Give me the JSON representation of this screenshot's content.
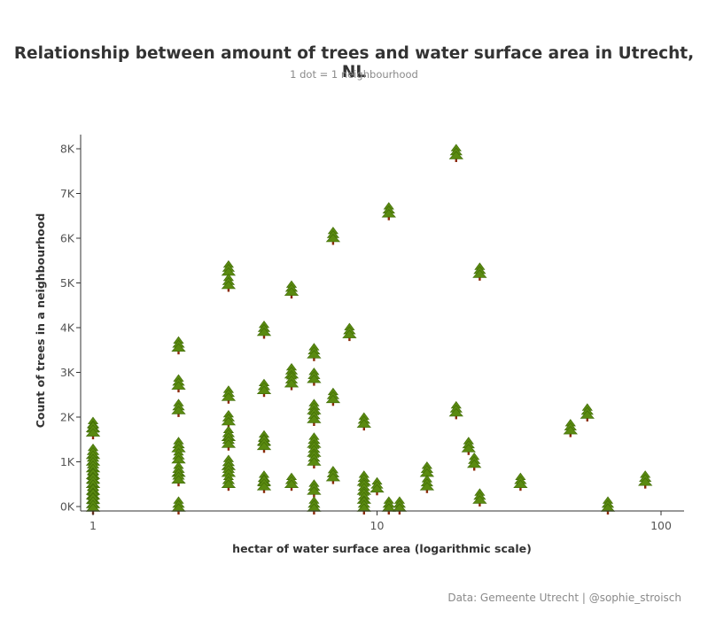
{
  "chart_data": {
    "type": "scatter",
    "title": "Relationship between amount of trees and water surface area in Utrecht, NL",
    "subtitle": "1 dot = 1 neighbourhood",
    "xlabel": "hectar of water surface area (logarithmic scale)",
    "ylabel": "Count of trees in a neighbourhood",
    "x_scale": "log",
    "xlim": [
      0.95,
      130
    ],
    "ylim": [
      0,
      8300
    ],
    "x_ticks": [
      1,
      10,
      100
    ],
    "x_tick_labels": [
      "1",
      "10",
      "100"
    ],
    "y_ticks": [
      0,
      1000,
      2000,
      3000,
      4000,
      5000,
      6000,
      7000,
      8000
    ],
    "y_tick_labels": [
      "0K",
      "1K",
      "2K",
      "3K",
      "4K",
      "5K",
      "6K",
      "7K",
      "8K"
    ],
    "grid": false,
    "legend": "none",
    "marker": "tree",
    "colors": {
      "tree": "#5a8a10",
      "trunk": "#8b2a0a",
      "axis": "#333333"
    },
    "points": [
      {
        "x": 1,
        "y": 1800
      },
      {
        "x": 1,
        "y": 1700
      },
      {
        "x": 1,
        "y": 1200
      },
      {
        "x": 1,
        "y": 1050
      },
      {
        "x": 1,
        "y": 900
      },
      {
        "x": 1,
        "y": 750
      },
      {
        "x": 1,
        "y": 650
      },
      {
        "x": 1,
        "y": 550
      },
      {
        "x": 1,
        "y": 400
      },
      {
        "x": 1,
        "y": 300
      },
      {
        "x": 1,
        "y": 200
      },
      {
        "x": 1,
        "y": 100
      },
      {
        "x": 1,
        "y": 20
      },
      {
        "x": 2,
        "y": 3600
      },
      {
        "x": 2,
        "y": 2750
      },
      {
        "x": 2,
        "y": 2200
      },
      {
        "x": 2,
        "y": 1350
      },
      {
        "x": 2,
        "y": 1100
      },
      {
        "x": 2,
        "y": 800
      },
      {
        "x": 2,
        "y": 650
      },
      {
        "x": 2,
        "y": 20
      },
      {
        "x": 3,
        "y": 5300
      },
      {
        "x": 3,
        "y": 5000
      },
      {
        "x": 3,
        "y": 2500
      },
      {
        "x": 3,
        "y": 1950
      },
      {
        "x": 3,
        "y": 1600
      },
      {
        "x": 3,
        "y": 1450
      },
      {
        "x": 3,
        "y": 950
      },
      {
        "x": 3,
        "y": 800
      },
      {
        "x": 3,
        "y": 550
      },
      {
        "x": 4,
        "y": 3950
      },
      {
        "x": 4,
        "y": 2650
      },
      {
        "x": 4,
        "y": 1500
      },
      {
        "x": 4,
        "y": 1400
      },
      {
        "x": 4,
        "y": 600
      },
      {
        "x": 4,
        "y": 500
      },
      {
        "x": 5,
        "y": 4850
      },
      {
        "x": 5,
        "y": 3000
      },
      {
        "x": 5,
        "y": 2800
      },
      {
        "x": 5,
        "y": 550
      },
      {
        "x": 6,
        "y": 3450
      },
      {
        "x": 6,
        "y": 2900
      },
      {
        "x": 6,
        "y": 2200
      },
      {
        "x": 6,
        "y": 2000
      },
      {
        "x": 6,
        "y": 1450
      },
      {
        "x": 6,
        "y": 1250
      },
      {
        "x": 6,
        "y": 1050
      },
      {
        "x": 6,
        "y": 400
      },
      {
        "x": 6,
        "y": 20
      },
      {
        "x": 7,
        "y": 6050
      },
      {
        "x": 7,
        "y": 2450
      },
      {
        "x": 7,
        "y": 700
      },
      {
        "x": 8,
        "y": 3900
      },
      {
        "x": 9,
        "y": 1900
      },
      {
        "x": 9,
        "y": 600
      },
      {
        "x": 9,
        "y": 400
      },
      {
        "x": 9,
        "y": 200
      },
      {
        "x": 9,
        "y": 20
      },
      {
        "x": 10,
        "y": 450
      },
      {
        "x": 11,
        "y": 6600
      },
      {
        "x": 11,
        "y": 20
      },
      {
        "x": 12,
        "y": 20
      },
      {
        "x": 15,
        "y": 800
      },
      {
        "x": 15,
        "y": 500
      },
      {
        "x": 19,
        "y": 7900
      },
      {
        "x": 19,
        "y": 2150
      },
      {
        "x": 21,
        "y": 1350
      },
      {
        "x": 22,
        "y": 1000
      },
      {
        "x": 23,
        "y": 5250
      },
      {
        "x": 23,
        "y": 200
      },
      {
        "x": 32,
        "y": 550
      },
      {
        "x": 48,
        "y": 1750
      },
      {
        "x": 55,
        "y": 2100
      },
      {
        "x": 65,
        "y": 20
      },
      {
        "x": 88,
        "y": 600
      }
    ]
  },
  "source": "Data: Gemeente Utrecht | @sophie_stroisch"
}
